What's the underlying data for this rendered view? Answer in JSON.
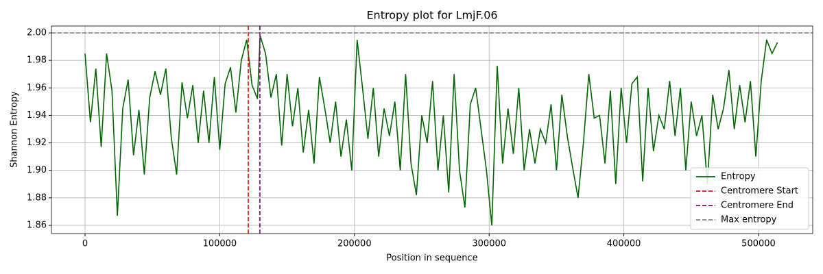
{
  "chart_data": {
    "type": "line",
    "title": "Entropy plot for LmjF.06",
    "x_label": "Position in sequence",
    "y_label": "Shannon Entropy",
    "x": [
      0,
      4000,
      8000,
      12000,
      16000,
      20000,
      24000,
      28000,
      32000,
      36000,
      40000,
      44000,
      48000,
      52000,
      56000,
      60000,
      64000,
      68000,
      72000,
      76000,
      80000,
      84000,
      88000,
      92000,
      96000,
      100000,
      104000,
      108000,
      112000,
      116000,
      120000,
      124000,
      128000,
      130000,
      134000,
      138000,
      142000,
      146000,
      150000,
      154000,
      158000,
      162000,
      166000,
      170000,
      174000,
      178000,
      182000,
      186000,
      190000,
      194000,
      198000,
      202000,
      206000,
      210000,
      214000,
      218000,
      222000,
      226000,
      230000,
      234000,
      238000,
      242000,
      246000,
      250000,
      254000,
      258000,
      262000,
      266000,
      270000,
      274000,
      278000,
      282000,
      286000,
      290000,
      294000,
      298000,
      302000,
      306000,
      310000,
      314000,
      318000,
      322000,
      326000,
      330000,
      334000,
      338000,
      342000,
      346000,
      350000,
      354000,
      358000,
      362000,
      366000,
      370000,
      374000,
      378000,
      382000,
      386000,
      390000,
      394000,
      398000,
      402000,
      406000,
      410000,
      414000,
      418000,
      422000,
      426000,
      430000,
      434000,
      438000,
      442000,
      446000,
      450000,
      454000,
      458000,
      462000,
      466000,
      470000,
      474000,
      478000,
      482000,
      486000,
      490000,
      494000,
      498000,
      502000,
      506000,
      510000,
      514000
    ],
    "series": [
      {
        "name": "Entropy",
        "color": "#006400",
        "values": [
          1.985,
          1.935,
          1.974,
          1.917,
          1.985,
          1.958,
          1.867,
          1.945,
          1.966,
          1.911,
          1.944,
          1.897,
          1.953,
          1.972,
          1.955,
          1.974,
          1.924,
          1.897,
          1.964,
          1.938,
          1.962,
          1.92,
          1.958,
          1.92,
          1.968,
          1.915,
          1.963,
          1.975,
          1.942,
          1.98,
          1.995,
          1.962,
          1.952,
          1.998,
          1.985,
          1.953,
          1.97,
          1.918,
          1.97,
          1.932,
          1.96,
          1.913,
          1.944,
          1.905,
          1.968,
          1.945,
          1.92,
          1.95,
          1.91,
          1.937,
          1.9,
          1.995,
          1.96,
          1.923,
          1.96,
          1.91,
          1.945,
          1.925,
          1.95,
          1.9,
          1.97,
          1.905,
          1.882,
          1.94,
          1.92,
          1.965,
          1.9,
          1.94,
          1.884,
          1.97,
          1.9,
          1.873,
          1.948,
          1.96,
          1.93,
          1.9,
          1.86,
          1.976,
          1.905,
          1.945,
          1.912,
          1.96,
          1.9,
          1.93,
          1.905,
          1.93,
          1.92,
          1.948,
          1.9,
          1.955,
          1.925,
          1.902,
          1.88,
          1.92,
          1.97,
          1.938,
          1.94,
          1.905,
          1.958,
          1.89,
          1.96,
          1.92,
          1.963,
          1.968,
          1.892,
          1.96,
          1.914,
          1.94,
          1.93,
          1.965,
          1.925,
          1.96,
          1.9,
          1.95,
          1.925,
          1.94,
          1.89,
          1.955,
          1.93,
          1.945,
          1.973,
          1.93,
          1.962,
          1.935,
          1.965,
          1.91,
          1.965,
          1.995,
          1.985,
          1.993
        ]
      }
    ],
    "reference_lines": [
      {
        "name": "Centromere Start",
        "color": "#ff0000",
        "orientation": "vertical",
        "value": 121200
      },
      {
        "name": "Centromere End",
        "color": "#800080",
        "orientation": "vertical",
        "value": 129800
      },
      {
        "name": "Max entropy",
        "color": "#808080",
        "orientation": "horizontal",
        "value": 2.0
      }
    ],
    "xlim": [
      -24950,
      540220
    ],
    "ylim": [
      1.854,
      2.005
    ],
    "xticks": [
      0,
      100000,
      200000,
      300000,
      400000,
      500000
    ],
    "yticks": [
      1.86,
      1.88,
      {
        "value": 1.9,
        "label": "1.90"
      },
      1.92,
      1.94,
      1.96,
      1.98,
      {
        "value": 2.0,
        "label": "2.00"
      }
    ],
    "grid": true,
    "legend_position": "lower right"
  }
}
